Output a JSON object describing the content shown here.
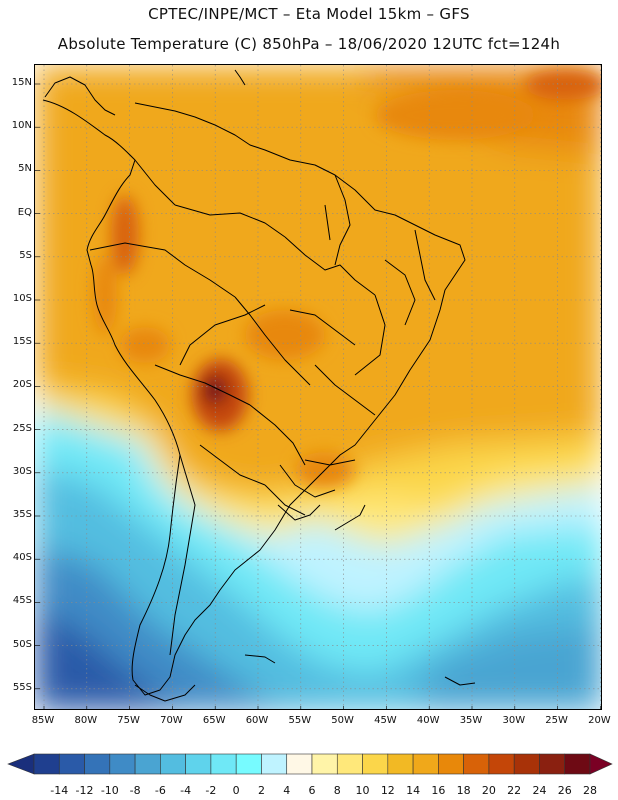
{
  "title_line1": "CPTEC/INPE/MCT  –   Eta Model 15km  –  GFS",
  "title_line2": "Absolute Temperature (C) 850hPa  –  18/06/2020 12UTC fct=124h",
  "lat_labels": [
    "15N",
    "10N",
    "5N",
    "EQ",
    "5S",
    "10S",
    "15S",
    "20S",
    "25S",
    "30S",
    "35S",
    "40S",
    "45S",
    "50S",
    "55S"
  ],
  "lon_labels": [
    "85W",
    "80W",
    "75W",
    "70W",
    "65W",
    "60W",
    "55W",
    "50W",
    "45W",
    "40W",
    "35W",
    "30W",
    "25W",
    "20W"
  ],
  "legend": {
    "levels": [
      "-14",
      "-12",
      "-10",
      "-8",
      "-6",
      "-4",
      "-2",
      "0",
      "2",
      "4",
      "6",
      "8",
      "10",
      "12",
      "14",
      "16",
      "18",
      "20",
      "22",
      "24",
      "26",
      "28"
    ],
    "colors": [
      "#1f3f8f",
      "#2a5aa8",
      "#3473b8",
      "#3f8bc6",
      "#4aa4d2",
      "#53bde0",
      "#5fd3ec",
      "#6fe8f6",
      "#77fbff",
      "#bff3ff",
      "#fff8e6",
      "#fff4a8",
      "#ffe87a",
      "#fbd64a",
      "#f2b924",
      "#f0a81a",
      "#e8880a",
      "#d86208",
      "#c44608",
      "#a83208",
      "#8a2010",
      "#6e0a14"
    ],
    "under_color": "#1a2f7c",
    "over_color": "#7a0024"
  }
}
